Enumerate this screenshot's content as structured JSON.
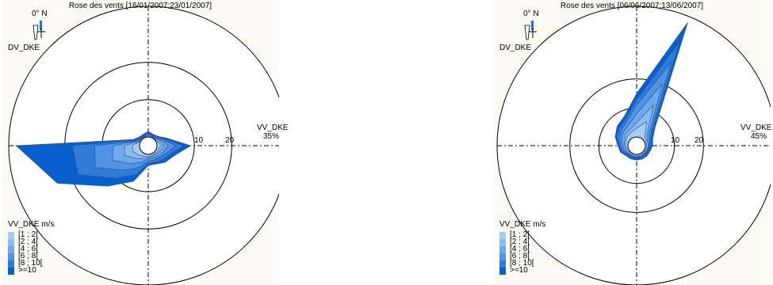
{
  "chart_data": [
    {
      "type": "windrose",
      "title": "Rose des vents [16/01/2007;23/01/2007]",
      "direction_label": "DV_DKE",
      "north_label": "0° N",
      "radial_label": "VV_DKE",
      "rmax_label": "35%",
      "rmax": 35,
      "rings": [
        10,
        20
      ],
      "legend_title": "VV_DKE m/s",
      "speed_classes": [
        "[1 ; 2[",
        "[2 ; 4[",
        "[4 ; 6[",
        "[6 ; 8[",
        "[8 ; 10[",
        ">=10"
      ],
      "class_colors": [
        "#a6cdf1",
        "#8bbcee",
        "#6fa9e9",
        "#5094e2",
        "#2f7bd8",
        "#0a5fcf"
      ],
      "directions_deg": [
        0,
        22.5,
        45,
        67.5,
        90,
        112.5,
        135,
        157.5,
        180,
        202.5,
        225,
        247.5,
        270,
        292.5,
        315,
        337.5
      ],
      "series": [
        {
          "name": "[1 ; 2[",
          "values": [
            0.3,
            0.2,
            0.2,
            0.5,
            1.0,
            0.6,
            0.5,
            0.5,
            0.5,
            0.8,
            1.2,
            2.0,
            2.0,
            0.3,
            0.2,
            0.2
          ]
        },
        {
          "name": "[2 ; 4[",
          "values": [
            0.5,
            0.3,
            0.3,
            1.0,
            1.8,
            1.2,
            0.8,
            0.8,
            0.8,
            1.5,
            2.5,
            4.5,
            4.0,
            0.5,
            0.3,
            0.3
          ]
        },
        {
          "name": "[4 ; 6[",
          "values": [
            0.8,
            0.5,
            0.6,
            1.5,
            3.0,
            2.0,
            1.5,
            1.2,
            1.2,
            2.5,
            4.5,
            8.0,
            7.0,
            0.8,
            0.5,
            0.5
          ]
        },
        {
          "name": "[6 ; 8[",
          "values": [
            1.0,
            0.6,
            0.8,
            2.0,
            5.0,
            3.0,
            2.0,
            1.8,
            1.8,
            4.0,
            7.0,
            13.0,
            12.0,
            1.0,
            0.6,
            0.6
          ]
        },
        {
          "name": "[8 ; 10[",
          "values": [
            1.2,
            0.8,
            1.0,
            2.5,
            7.0,
            4.0,
            3.0,
            2.5,
            2.5,
            6.0,
            10.0,
            18.0,
            18.0,
            1.5,
            0.8,
            0.8
          ]
        },
        {
          "name": ">=10",
          "values": [
            1.5,
            1.0,
            1.2,
            3.0,
            9.0,
            5.0,
            4.0,
            3.0,
            3.0,
            8.0,
            13.0,
            24.0,
            33.0,
            2.0,
            1.0,
            1.0
          ]
        }
      ]
    },
    {
      "type": "windrose",
      "title": "Rose des vents [06/06/2007;13/06/2007]",
      "direction_label": "DV_DKE",
      "north_label": "0° N",
      "radial_label": "VV_DKE",
      "rmax_label": "45%",
      "rmax": 45,
      "rings": [
        10,
        20
      ],
      "legend_title": "VV_DKE m/s",
      "speed_classes": [
        "[1 ; 2[",
        "[2 ; 4[",
        "[4 ; 6[",
        "[6 ; 8[",
        "[8 ; 10[",
        ">=10"
      ],
      "class_colors": [
        "#a6cdf1",
        "#8bbcee",
        "#6fa9e9",
        "#5094e2",
        "#2f7bd8",
        "#0a5fcf"
      ],
      "directions_deg": [
        0,
        22.5,
        45,
        67.5,
        90,
        112.5,
        135,
        157.5,
        180,
        202.5,
        225,
        247.5,
        270,
        292.5,
        315,
        337.5
      ],
      "series": [
        {
          "name": "[1 ; 2[",
          "values": [
            3.0,
            6.0,
            1.0,
            0.5,
            0.5,
            0.5,
            0.5,
            0.5,
            0.5,
            0.5,
            0.5,
            0.5,
            0.8,
            1.0,
            1.5,
            2.0
          ]
        },
        {
          "name": "[2 ; 4[",
          "values": [
            5.0,
            12.0,
            2.0,
            1.0,
            1.0,
            0.8,
            0.8,
            0.8,
            0.8,
            0.8,
            0.8,
            1.0,
            1.2,
            1.5,
            2.5,
            3.0
          ]
        },
        {
          "name": "[4 ; 6[",
          "values": [
            8.0,
            20.0,
            3.0,
            1.5,
            1.2,
            1.0,
            1.0,
            1.0,
            1.0,
            1.0,
            1.0,
            1.5,
            1.8,
            2.5,
            3.5,
            4.5
          ]
        },
        {
          "name": "[6 ; 8[",
          "values": [
            11.0,
            28.0,
            4.0,
            2.0,
            1.5,
            1.2,
            1.2,
            1.2,
            1.2,
            1.2,
            1.2,
            2.0,
            2.5,
            3.5,
            4.5,
            6.0
          ]
        },
        {
          "name": "[8 ; 10[",
          "values": [
            13.0,
            36.0,
            5.0,
            2.5,
            2.0,
            1.5,
            1.5,
            1.5,
            1.5,
            1.5,
            1.5,
            2.5,
            3.0,
            4.5,
            5.5,
            7.0
          ]
        },
        {
          "name": ">=10",
          "values": [
            15.0,
            43.0,
            6.0,
            3.0,
            2.5,
            2.0,
            2.0,
            2.0,
            2.0,
            2.0,
            2.0,
            3.0,
            3.5,
            5.0,
            6.5,
            8.0
          ]
        }
      ]
    }
  ]
}
